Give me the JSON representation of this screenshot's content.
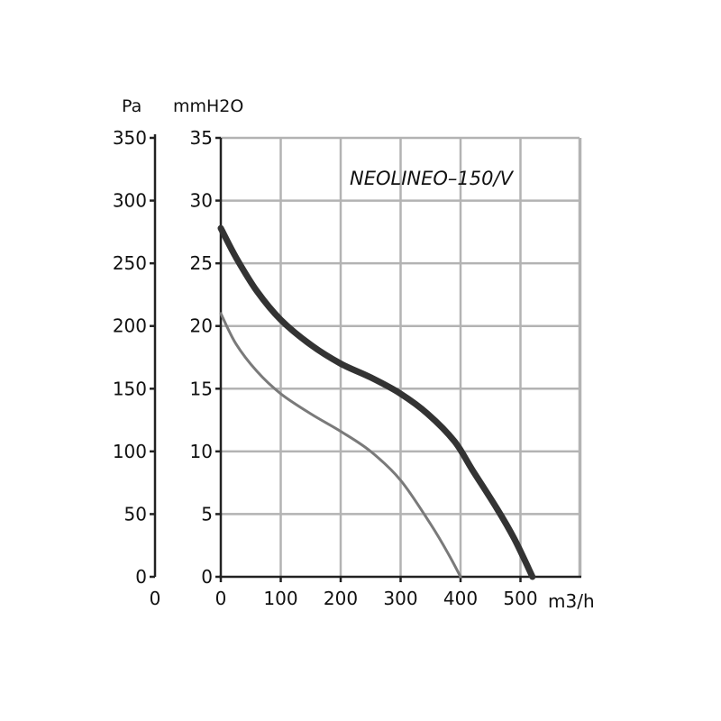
{
  "chart_data": {
    "type": "line",
    "title": "NEOLINEO–150/V",
    "left_axis_unit": "Pa",
    "inner_axis_unit": "mmH2O",
    "x_unit": "m3/h",
    "xlim": [
      0,
      600
    ],
    "ylim_mmh2o": [
      0,
      35
    ],
    "ylim_pa": [
      0,
      350
    ],
    "x_ticks": [
      0,
      100,
      200,
      300,
      400,
      500
    ],
    "x_tick_labels": [
      "0",
      "100",
      "200",
      "300",
      "400",
      "500"
    ],
    "y_ticks_mmh2o": [
      0,
      5,
      10,
      15,
      20,
      25,
      30,
      35
    ],
    "y_tick_labels_mmh2o": [
      "0",
      "5",
      "10",
      "15",
      "20",
      "25",
      "30",
      "35"
    ],
    "y_ticks_pa": [
      0,
      50,
      100,
      150,
      200,
      250,
      300,
      350
    ],
    "y_tick_labels_pa": [
      "0",
      "50",
      "100",
      "150",
      "200",
      "250",
      "300",
      "350"
    ],
    "outer_zero_label": "0",
    "grid": true,
    "series": [
      {
        "color": "#333333",
        "width": "thick",
        "x": [
          0,
          25,
          60,
          100,
          150,
          200,
          250,
          300,
          345,
          390,
          420,
          460,
          490,
          520
        ],
        "y": [
          27.8,
          25.5,
          22.8,
          20.5,
          18.5,
          17.0,
          15.9,
          14.6,
          13.0,
          10.8,
          8.5,
          5.5,
          3.0,
          0
        ]
      },
      {
        "color": "#7a7a7a",
        "width": "thin",
        "x": [
          0,
          25,
          60,
          100,
          150,
          200,
          250,
          300,
          350,
          380,
          400
        ],
        "y": [
          21.0,
          18.6,
          16.4,
          14.6,
          13.0,
          11.6,
          10.0,
          7.7,
          4.2,
          1.8,
          0
        ]
      }
    ]
  }
}
